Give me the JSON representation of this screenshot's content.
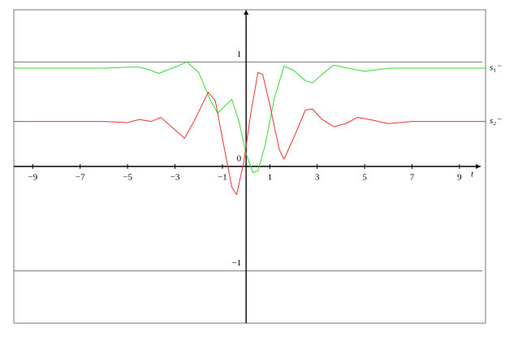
{
  "chart_data": {
    "type": "line",
    "x_label": "t",
    "xlim": [
      -9.8,
      10.1
    ],
    "ylim": [
      -1.5,
      1.5
    ],
    "xticks": [
      {
        "value": -9,
        "label": "−9"
      },
      {
        "value": -7,
        "label": "−7"
      },
      {
        "value": -5,
        "label": "−5"
      },
      {
        "value": -3,
        "label": "−3"
      },
      {
        "value": -1,
        "label": "−1"
      },
      1,
      3,
      5,
      7,
      9
    ],
    "yticks": [
      1,
      0,
      {
        "value": -1,
        "label": "−1"
      }
    ],
    "grid": true,
    "series": [
      {
        "name": "s₁⁻",
        "color": "#33dd33",
        "x": [
          -9.8,
          -6,
          -5,
          -4.5,
          -4,
          -3.7,
          -3,
          -2.5,
          -2,
          -1.5,
          -1.2,
          -0.8,
          -0.6,
          -0.3,
          0,
          0.3,
          0.5,
          0.8,
          1.2,
          1.6,
          2,
          2.5,
          2.8,
          3.3,
          3.7,
          4.3,
          5,
          6,
          10.1
        ],
        "values": [
          0.94,
          0.94,
          0.95,
          0.95,
          0.92,
          0.89,
          0.95,
          1.0,
          0.9,
          0.63,
          0.51,
          0.6,
          0.64,
          0.43,
          0.12,
          -0.06,
          -0.04,
          0.2,
          0.66,
          0.96,
          0.92,
          0.82,
          0.8,
          0.9,
          0.97,
          0.94,
          0.91,
          0.94,
          0.94
        ]
      },
      {
        "name": "s₂⁻",
        "color": "#ee3333",
        "x": [
          -9.8,
          -6,
          -5,
          -4.5,
          -4,
          -3.6,
          -3,
          -2.6,
          -2.2,
          -1.6,
          -1.3,
          -1,
          -0.6,
          -0.4,
          -0.1,
          0.2,
          0.5,
          0.7,
          1,
          1.4,
          1.6,
          2,
          2.5,
          2.8,
          3.2,
          3.7,
          4.2,
          4.7,
          5.2,
          6,
          7,
          10.1
        ],
        "values": [
          0.43,
          0.43,
          0.42,
          0.45,
          0.43,
          0.47,
          0.35,
          0.27,
          0.43,
          0.71,
          0.63,
          0.27,
          -0.2,
          -0.27,
          0.04,
          0.51,
          0.9,
          0.88,
          0.59,
          0.16,
          0.07,
          0.27,
          0.54,
          0.55,
          0.45,
          0.38,
          0.41,
          0.47,
          0.45,
          0.41,
          0.43,
          0.43
        ]
      }
    ]
  }
}
